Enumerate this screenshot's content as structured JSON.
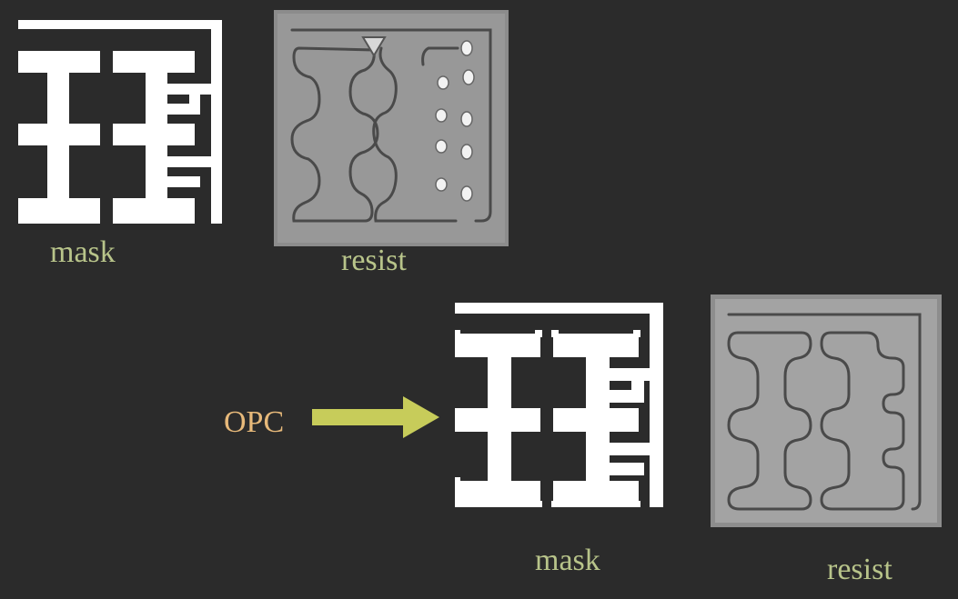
{
  "labels": {
    "mask_top": "mask",
    "resist_top": "resist",
    "mask_bottom": "mask",
    "resist_bottom": "resist",
    "opc": "OPC"
  },
  "colors": {
    "background": "#2b2b2b",
    "label": "#b8c48a",
    "opc_label": "#e7b97a",
    "arrow": "#c7cc5a",
    "mask": "#ffffff",
    "resist_bg": "#8d8d8d",
    "resist_line": "#4a4a4a",
    "resist_frame": "#b3b3b3"
  },
  "icons": {
    "arrow": "right-arrow-icon"
  }
}
